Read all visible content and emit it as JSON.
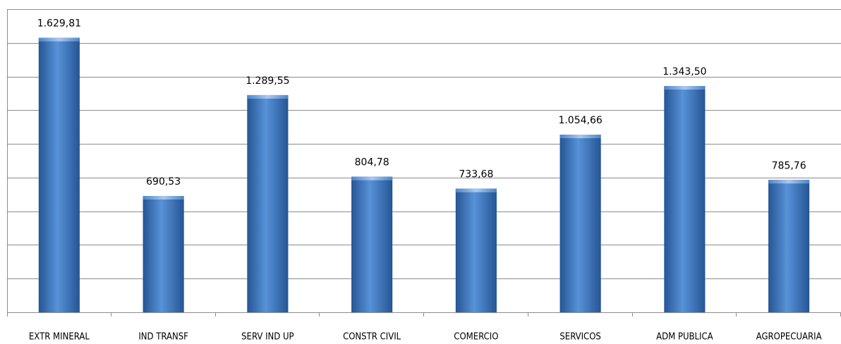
{
  "chart_data": {
    "type": "bar",
    "categories": [
      "EXTR MINERAL",
      "IND TRANSF",
      "SERV IND  UP",
      "CONSTR CIVIL",
      "COMERCIO",
      "SERVICOS",
      "ADM PUBLICA",
      "AGROPECUARIA"
    ],
    "values": [
      1629.81,
      690.53,
      1289.55,
      804.78,
      733.68,
      1054.66,
      1343.5,
      785.76
    ],
    "value_labels": [
      "1.629,81",
      "690,53",
      "1.289,55",
      "804,78",
      "733,68",
      "1.054,66",
      "1.343,50",
      "785,76"
    ],
    "color": "#4a7ebf",
    "ylim": [
      0,
      1800
    ],
    "yticks": [
      0,
      200,
      400,
      600,
      800,
      1000,
      1200,
      1400,
      1600,
      1800
    ],
    "grid": true
  }
}
